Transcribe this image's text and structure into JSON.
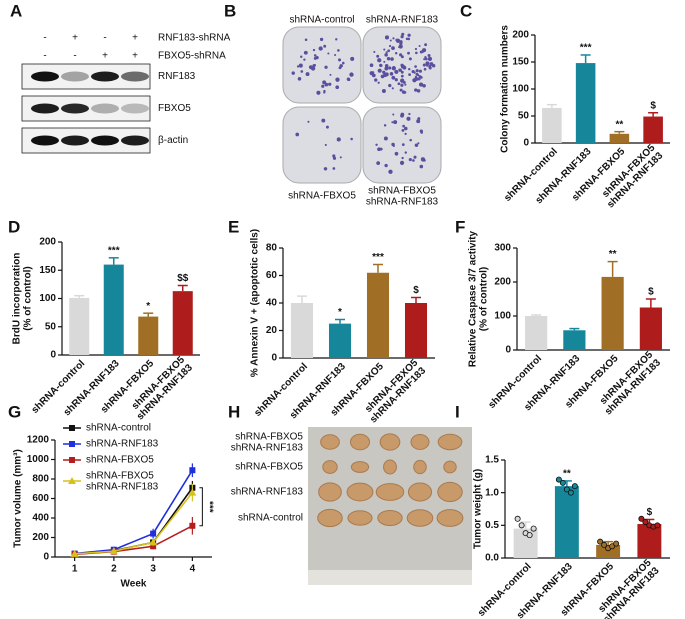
{
  "figure": {
    "panels": [
      "A",
      "B",
      "C",
      "D",
      "E",
      "F",
      "G",
      "H",
      "I"
    ],
    "blot": {
      "rows": [
        {
          "label": "RNF183-shRNA",
          "signs": [
            "-",
            "+",
            "-",
            "+"
          ]
        },
        {
          "label": "FBXO5-shRNA",
          "signs": [
            "-",
            "-",
            "+",
            "+"
          ]
        }
      ],
      "bands": [
        "RNF183",
        "FBXO5",
        "β-actin"
      ]
    },
    "colony_labels": [
      "shRNA-control",
      "shRNA-RNF183",
      "shRNA-FBXO5",
      "shRNA-FBXO5\nshRNA-RNF183"
    ],
    "tumor_labels": [
      "shRNA-FBXO5\nshRNA-RNF183",
      "shRNA-FBXO5",
      "shRNA-RNF183",
      "shRNA-control"
    ]
  },
  "chart_data": [
    {
      "type": "bar",
      "y_label": "Colony formation numbers",
      "categories": [
        "shRNA-control",
        "shRNA-RNF183",
        "shRNA-FBXO5",
        "shRNA-FBXO5\nshRNA-RNF183"
      ],
      "values": [
        65,
        148,
        17,
        49
      ],
      "errors": [
        6,
        15,
        4,
        7
      ],
      "annotations": [
        null,
        "***",
        "**",
        "$"
      ],
      "colors": [
        "#d9d9d9",
        "#16879b",
        "#a06e24",
        "#ae1c1c"
      ],
      "ylim": [
        0,
        200
      ],
      "yticks": [
        0,
        50,
        100,
        150,
        200
      ]
    },
    {
      "type": "bar",
      "y_label": "BrdU incorporation\n(% of control)",
      "categories": [
        "shRNA-control",
        "shRNA-RNF183",
        "shRNA-FBXO5",
        "shRNA-FBXO5\nshRNA-RNF183"
      ],
      "values": [
        101,
        160,
        68,
        113
      ],
      "errors": [
        4,
        12,
        6,
        10
      ],
      "annotations": [
        null,
        "***",
        "*",
        "$$"
      ],
      "colors": [
        "#d9d9d9",
        "#16879b",
        "#a06e24",
        "#ae1c1c"
      ],
      "ylim": [
        0,
        200
      ],
      "yticks": [
        0,
        50,
        100,
        150,
        200
      ]
    },
    {
      "type": "bar",
      "y_label": "% Annexin V + (apoptotic cells)",
      "categories": [
        "shRNA-control",
        "shRNA-RNF183",
        "shRNA-FBXO5",
        "shRNA-FBXO5\nshRNA-RNF183"
      ],
      "values": [
        40,
        25,
        62,
        40
      ],
      "errors": [
        5,
        3,
        6,
        4
      ],
      "annotations": [
        null,
        "*",
        "***",
        "$"
      ],
      "colors": [
        "#d9d9d9",
        "#16879b",
        "#a06e24",
        "#ae1c1c"
      ],
      "ylim": [
        0,
        80
      ],
      "yticks": [
        0,
        20,
        40,
        60,
        80
      ]
    },
    {
      "type": "bar",
      "y_label": "Relative Caspase 3/7 activity\n(% of control)",
      "categories": [
        "shRNA-control",
        "shRNA-RNF183",
        "shRNA-FBXO5",
        "shRNA-FBXO5\nshRNA-RNF183"
      ],
      "values": [
        100,
        58,
        215,
        125
      ],
      "errors": [
        3,
        5,
        45,
        25
      ],
      "annotations": [
        null,
        null,
        "**",
        "$"
      ],
      "colors": [
        "#d9d9d9",
        "#16879b",
        "#a06e24",
        "#ae1c1c"
      ],
      "ylim": [
        0,
        300
      ],
      "yticks": [
        0,
        100,
        200,
        300
      ]
    },
    {
      "type": "line",
      "y_label": "Tumor volume (mm³)",
      "x_label": "Week",
      "x": [
        1,
        2,
        3,
        4
      ],
      "xlim": [
        0.5,
        4.5
      ],
      "xticks": [
        1,
        2,
        3,
        4
      ],
      "ylim": [
        0,
        1200
      ],
      "yticks": [
        0,
        200,
        400,
        600,
        800,
        1000,
        1200
      ],
      "annotation": "***",
      "series": [
        {
          "name": "shRNA-control",
          "color": "#111111",
          "marker": "square",
          "values": [
            30,
            65,
            150,
            710
          ],
          "errors": [
            5,
            10,
            30,
            70
          ]
        },
        {
          "name": "shRNA-RNF183",
          "color": "#1f2fe0",
          "marker": "square",
          "values": [
            35,
            75,
            240,
            890
          ],
          "errors": [
            5,
            12,
            50,
            70
          ]
        },
        {
          "name": "shRNA-FBXO5",
          "color": "#b41e1e",
          "marker": "square",
          "values": [
            28,
            55,
            110,
            320
          ],
          "errors": [
            5,
            8,
            30,
            90
          ]
        },
        {
          "name": "shRNA-FBXO5\nshRNA-RNF183",
          "color": "#d6c21a",
          "marker": "triangle",
          "values": [
            32,
            60,
            150,
            660
          ],
          "errors": [
            5,
            10,
            35,
            90
          ]
        }
      ]
    },
    {
      "type": "bar",
      "y_label": "Tumor weight (g)",
      "categories": [
        "shRNA-control",
        "shRNA-RNF183",
        "shRNA-FBXO5",
        "shRNA-FBXO5\nshRNA-RNF183"
      ],
      "values": [
        0.45,
        1.1,
        0.2,
        0.52
      ],
      "errors": [
        0.1,
        0.08,
        0.05,
        0.07
      ],
      "annotations": [
        null,
        "**",
        null,
        "$"
      ],
      "points": [
        [
          0.6,
          0.5,
          0.38,
          0.35,
          0.45
        ],
        [
          1.2,
          1.15,
          1.05,
          1.0,
          1.1
        ],
        [
          0.25,
          0.2,
          0.15,
          0.18,
          0.22
        ],
        [
          0.6,
          0.55,
          0.5,
          0.48,
          0.5
        ]
      ],
      "colors": [
        "#d9d9d9",
        "#16879b",
        "#a06e24",
        "#ae1c1c"
      ],
      "ylim": [
        0,
        1.5
      ],
      "yticks": [
        {
          "value": 0,
          "label": "0.0"
        },
        0.5,
        {
          "value": 1,
          "label": "1.0"
        },
        1.5
      ]
    }
  ]
}
